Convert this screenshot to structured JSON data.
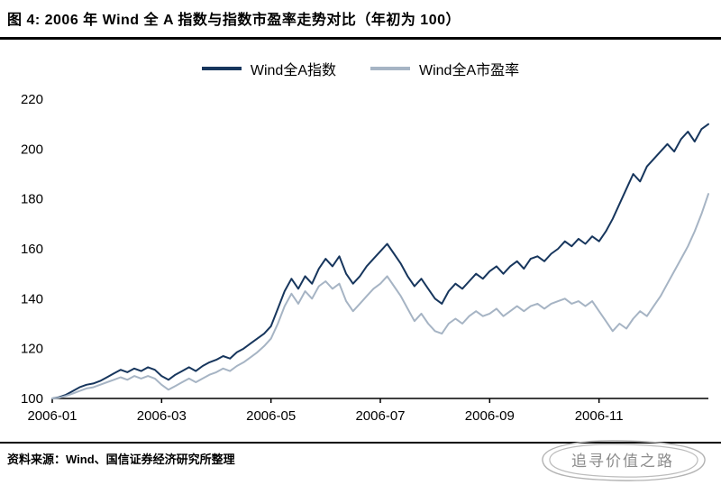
{
  "header": {
    "title": "图 4: 2006 年 Wind 全 A 指数与指数市盈率走势对比（年初为 100）"
  },
  "legend": {
    "items": [
      {
        "label": "Wind全A指数",
        "color": "#17365d"
      },
      {
        "label": "Wind全A市盈率",
        "color": "#a6b4c4"
      }
    ]
  },
  "footer": {
    "source": "资料来源：Wind、国信证券经济研究所整理"
  },
  "watermark": {
    "text": "追寻价值之路"
  },
  "chart_data": {
    "type": "line",
    "title": "2006 年 Wind 全 A 指数与指数市盈率走势对比（年初为 100）",
    "xlabel": "",
    "ylabel": "",
    "ylim": [
      100,
      220
    ],
    "y_ticks": [
      100,
      120,
      140,
      160,
      180,
      200,
      220
    ],
    "x_ticks": [
      "2006-01",
      "2006-03",
      "2006-05",
      "2006-07",
      "2006-09",
      "2006-11"
    ],
    "x_tick_months": [
      0,
      2,
      4,
      6,
      8,
      10
    ],
    "month_span": 12,
    "grid": false,
    "legend_position": "top",
    "series": [
      {
        "name": "Wind全A指数",
        "color": "#17365d",
        "values": [
          100,
          100.5,
          101.5,
          103,
          104.5,
          105.5,
          106,
          107,
          108.5,
          110,
          111.5,
          110.5,
          112,
          111,
          112.5,
          111.5,
          109,
          107.5,
          109.5,
          111,
          112.5,
          111,
          113,
          114.5,
          115.5,
          117,
          116,
          118.5,
          120,
          122,
          124,
          126,
          129,
          136,
          143,
          148,
          144,
          149,
          146,
          152,
          156,
          153,
          157,
          150,
          146,
          149,
          153,
          156,
          159,
          162,
          158,
          154,
          149,
          145,
          148,
          144,
          140,
          138,
          143,
          146,
          144,
          147,
          150,
          148,
          151,
          153,
          150,
          153,
          155,
          152,
          156,
          157,
          155,
          158,
          160,
          163,
          161,
          164,
          162,
          165,
          163,
          167,
          172,
          178,
          184,
          190,
          187,
          193,
          196,
          199,
          202,
          199,
          204,
          207,
          203,
          208,
          210
        ]
      },
      {
        "name": "Wind全A市盈率",
        "color": "#a6b4c4",
        "values": [
          100,
          100.3,
          101,
          102,
          103,
          104,
          104.5,
          105.5,
          106.5,
          107.5,
          108.5,
          107.5,
          109,
          108,
          109,
          108,
          105.5,
          103.5,
          105,
          106.5,
          108,
          106.5,
          108,
          109.5,
          110.5,
          112,
          111,
          113,
          114.5,
          116.5,
          118.5,
          121,
          124,
          130,
          137,
          142,
          138,
          143,
          140,
          145,
          147,
          144,
          146,
          139,
          135,
          138,
          141,
          144,
          146,
          149,
          145,
          141,
          136,
          131,
          134,
          130,
          127,
          126,
          130,
          132,
          130,
          133,
          135,
          133,
          134,
          136,
          133,
          135,
          137,
          135,
          137,
          138,
          136,
          138,
          139,
          140,
          138,
          139,
          137,
          139,
          135,
          131,
          127,
          130,
          128,
          132,
          135,
          133,
          137,
          141,
          146,
          151,
          156,
          161,
          167,
          174,
          182
        ]
      }
    ]
  }
}
